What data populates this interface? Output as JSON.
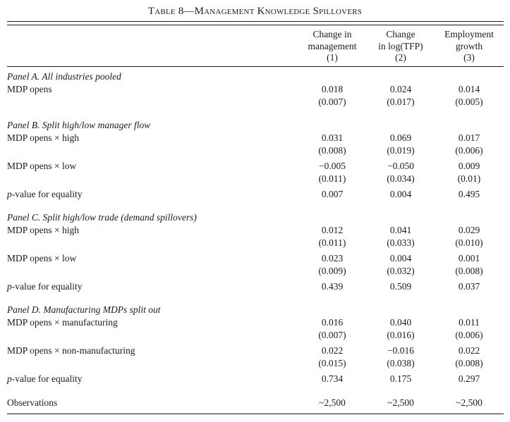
{
  "title": "Table 8—Management Knowledge Spillovers",
  "colors": {
    "text": "#1b1b1b",
    "background": "#ffffff"
  },
  "table": {
    "columns": [
      {
        "lines": [
          "Change in",
          "management",
          "(1)"
        ]
      },
      {
        "lines": [
          "Change",
          "in log(TFP)",
          "(2)"
        ]
      },
      {
        "lines": [
          "Employment",
          "growth",
          "(3)"
        ]
      }
    ],
    "panels": [
      {
        "label": "Panel A. All industries pooled",
        "rows": [
          {
            "label": "MDP opens",
            "coef": [
              "0.018",
              "0.024",
              "0.014"
            ],
            "se": [
              "(0.007)",
              "(0.017)",
              "(0.005)"
            ]
          }
        ]
      },
      {
        "label": "Panel B. Split high/low manager flow",
        "rows": [
          {
            "label": "MDP opens × high",
            "coef": [
              "0.031",
              "0.069",
              "0.017"
            ],
            "se": [
              "(0.008)",
              "(0.019)",
              "(0.006)"
            ]
          },
          {
            "label": "MDP opens × low",
            "coef": [
              "−0.005",
              "−0.050",
              "0.009"
            ],
            "se": [
              "(0.011)",
              "(0.034)",
              "(0.01)"
            ]
          },
          {
            "italic_prefix": "p",
            "label": "-value for equality",
            "coef": [
              "0.007",
              "0.004",
              "0.495"
            ]
          }
        ]
      },
      {
        "label": "Panel C. Split high/low trade (demand spillovers)",
        "rows": [
          {
            "label": "MDP opens × high",
            "coef": [
              "0.012",
              "0.041",
              "0.029"
            ],
            "se": [
              "(0.011)",
              "(0.033)",
              "(0.010)"
            ]
          },
          {
            "label": "MDP opens × low",
            "coef": [
              "0.023",
              "0.004",
              "0.001"
            ],
            "se": [
              "(0.009)",
              "(0.032)",
              "(0.008)"
            ]
          },
          {
            "italic_prefix": "p",
            "label": "-value for equality",
            "coef": [
              "0.439",
              "0.509",
              "0.037"
            ]
          }
        ]
      },
      {
        "label": "Panel D. Manufacturing MDPs split out",
        "rows": [
          {
            "label": "MDP opens × manufacturing",
            "coef": [
              "0.016",
              "0.040",
              "0.011"
            ],
            "se": [
              "(0.007)",
              "(0.016)",
              "(0.006)"
            ]
          },
          {
            "label": "MDP opens × non-manufacturing",
            "coef": [
              "0.022",
              "−0.016",
              "0.022"
            ],
            "se": [
              "(0.015)",
              "(0.038)",
              "(0.008)"
            ]
          },
          {
            "italic_prefix": "p",
            "label": "-value for equality",
            "coef": [
              "0.734",
              "0.175",
              "0.297"
            ]
          }
        ]
      }
    ],
    "footer": {
      "label": "Observations",
      "values": [
        "~2,500",
        "~2,500",
        "~2,500"
      ]
    }
  }
}
